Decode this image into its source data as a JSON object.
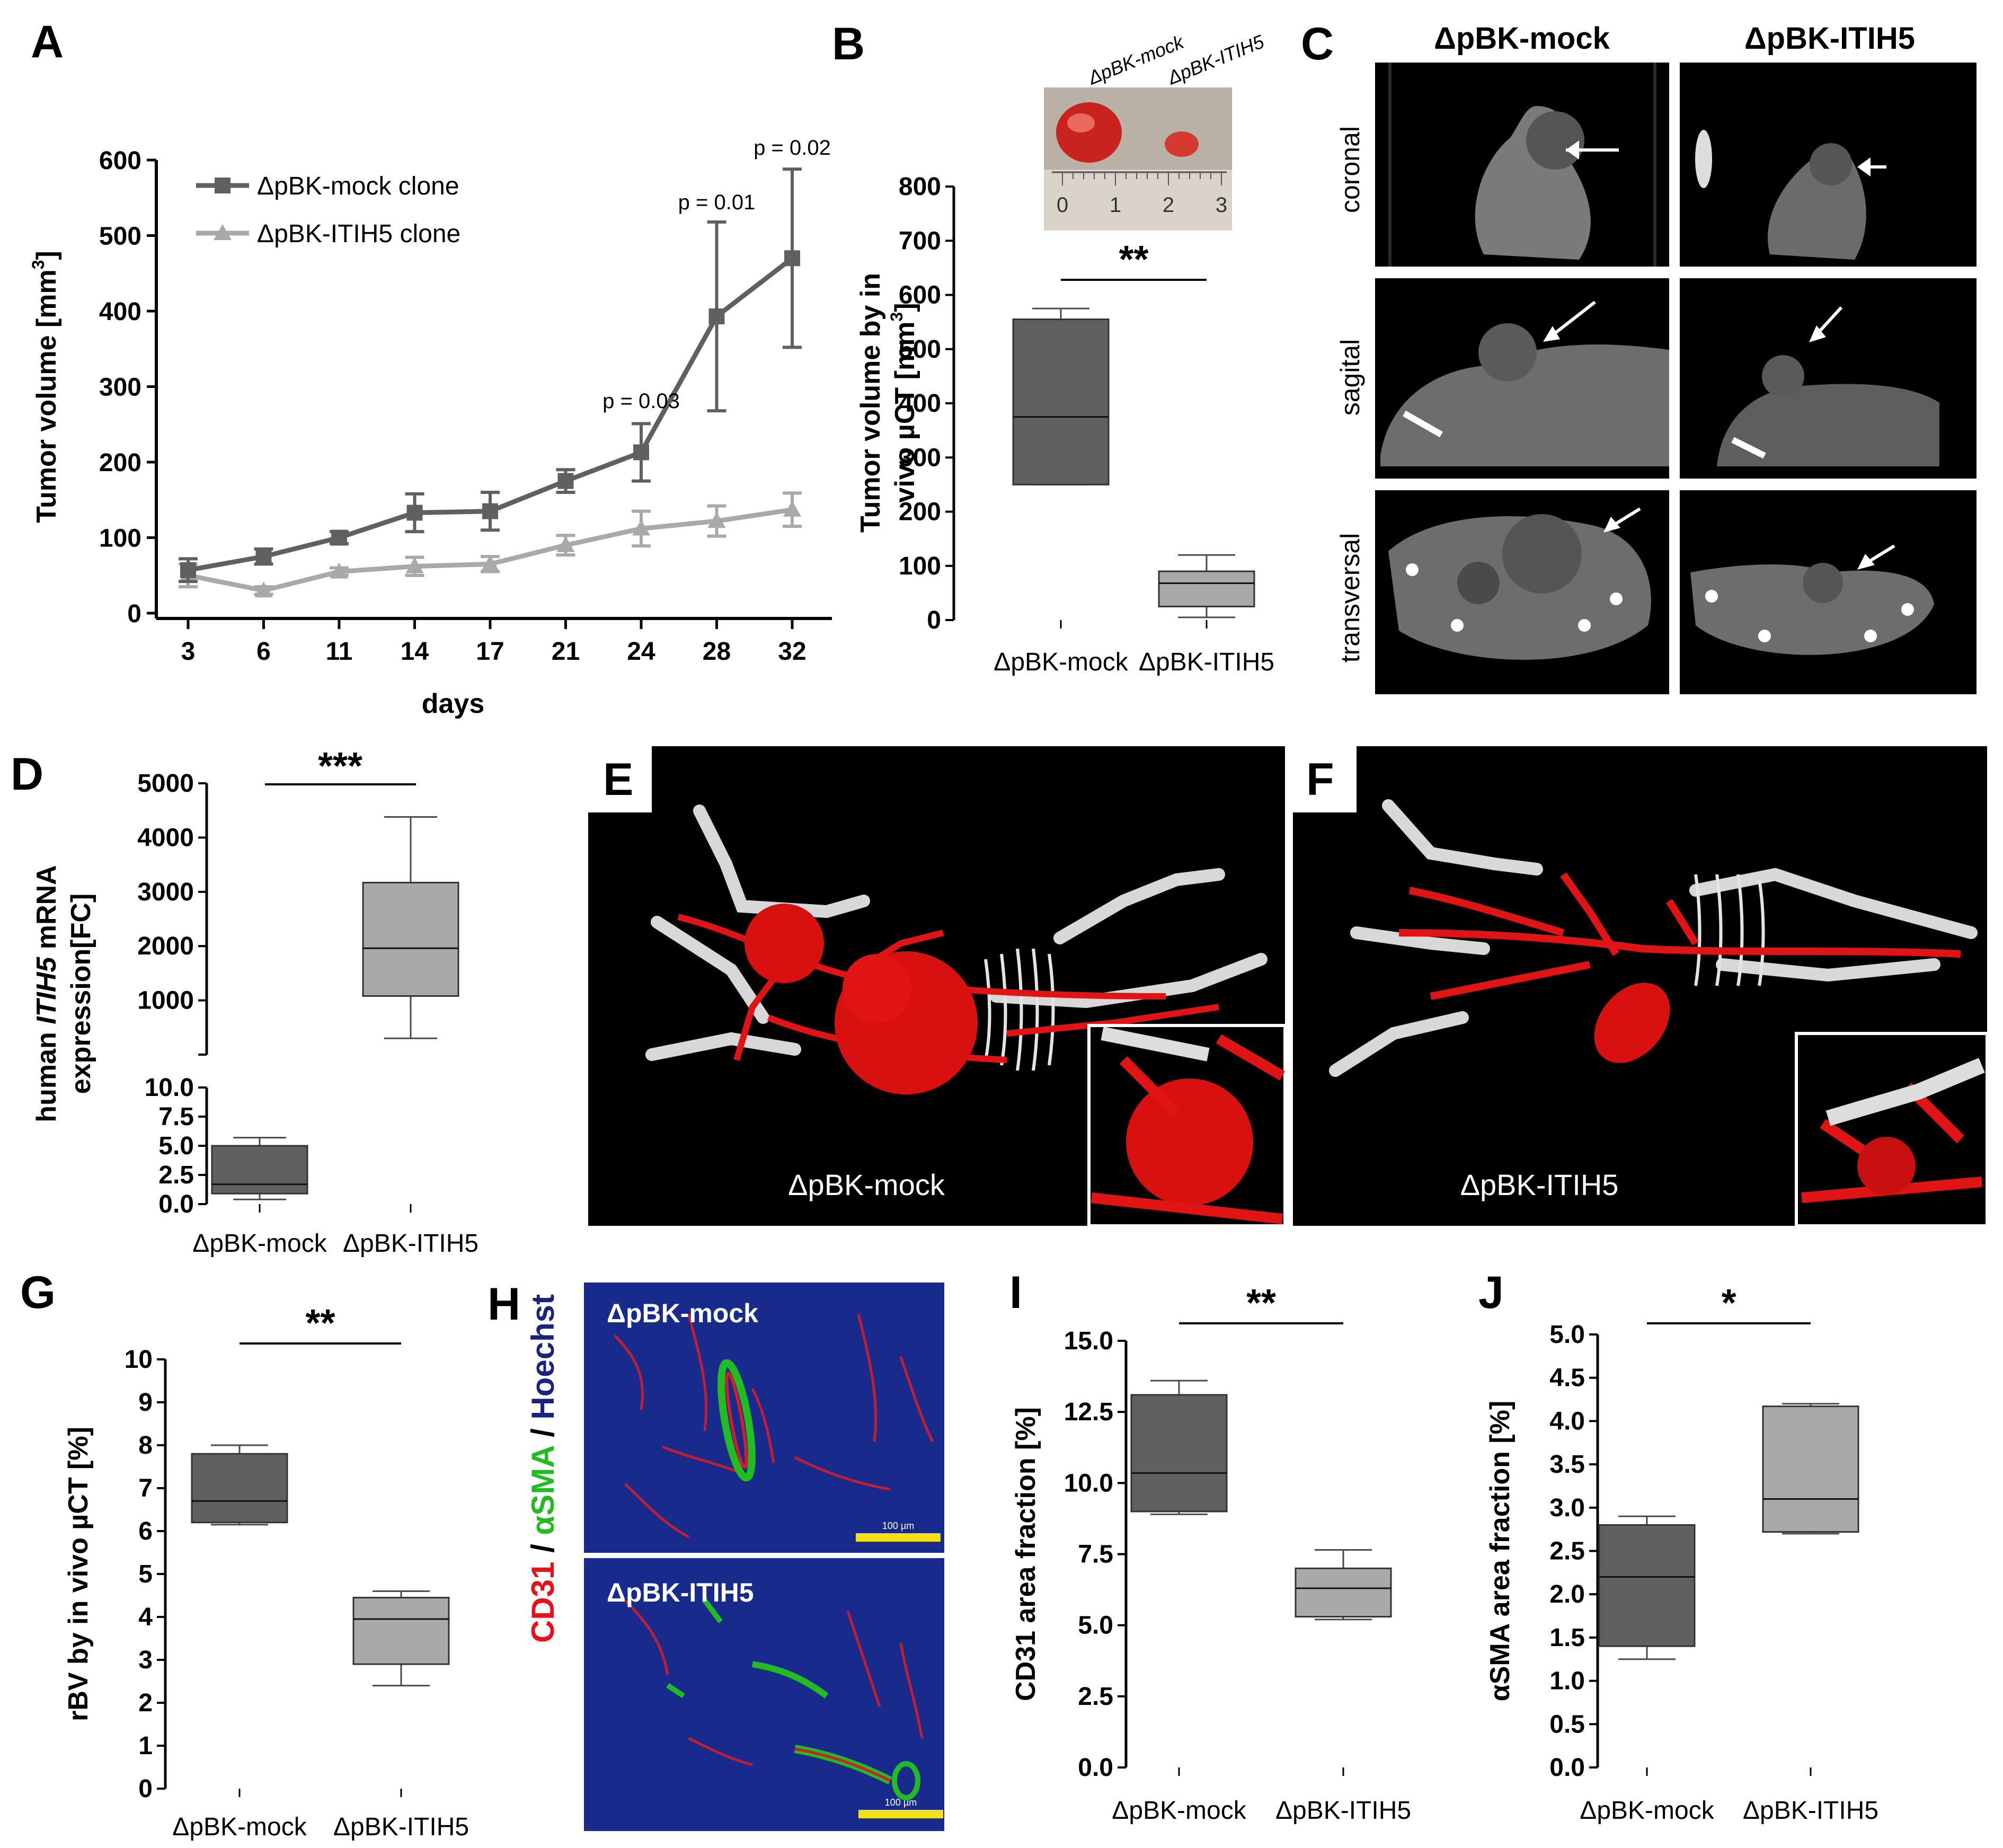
{
  "figure": {
    "colors": {
      "mock": "#606060",
      "itih5": "#a9a9a9",
      "cd31": "#e8101a",
      "asma": "#22bb22",
      "hoechst": "#1a237e",
      "scale": "#f3e016"
    }
  },
  "panel_labels": {
    "A": "A",
    "B": "B",
    "C": "C",
    "D": "D",
    "E": "E",
    "F": "F",
    "G": "G",
    "H": "H",
    "I": "I",
    "J": "J"
  },
  "chart_data": [
    {
      "id": "A",
      "type": "line",
      "xlabel": "days",
      "ylabel_parts": [
        "Tumor volume [mm",
        "3",
        "]"
      ],
      "ylim": [
        0,
        600
      ],
      "yticks": [
        "0",
        "100",
        "200",
        "300",
        "400",
        "500",
        "600"
      ],
      "categories": [
        "3",
        "6",
        "11",
        "14",
        "17",
        "21",
        "24",
        "28",
        "32"
      ],
      "series": [
        {
          "name": "ΔpBK-mock clone",
          "values": [
            57,
            75,
            100,
            133,
            135,
            175,
            213,
            393,
            470
          ],
          "errors": [
            15,
            10,
            8,
            25,
            25,
            15,
            38,
            125,
            118
          ]
        },
        {
          "name": "ΔpBK-ITIH5 clone",
          "values": [
            50,
            30,
            55,
            62,
            65,
            90,
            112,
            122,
            137
          ],
          "errors": [
            15,
            5,
            5,
            12,
            10,
            13,
            23,
            20,
            22
          ]
        }
      ],
      "annotations": [
        {
          "text": "p = 0.03",
          "x": "24"
        },
        {
          "text": "p = 0.01",
          "x": "28"
        },
        {
          "text": "p = 0.02",
          "x": "32"
        }
      ]
    },
    {
      "id": "B",
      "type": "box",
      "ylabel_line1": "Tumor volume by in",
      "ylabel_parts": [
        "vivo µCT [mm",
        "3",
        "]"
      ],
      "ylim": [
        0,
        800
      ],
      "yticks": [
        "0",
        "100",
        "200",
        "300",
        "400",
        "500",
        "600",
        "700",
        "800"
      ],
      "categories": [
        "ΔpBK-mock",
        "ΔpBK-ITIH5"
      ],
      "boxes": [
        {
          "min": 250,
          "q1": 250,
          "median": 375,
          "q3": 555,
          "max": 575
        },
        {
          "min": 5,
          "q1": 25,
          "median": 68,
          "q3": 90,
          "max": 120
        }
      ],
      "significance": "**",
      "photo_labels": [
        "ΔpBK-mock",
        "ΔpBK-ITIH5"
      ],
      "ruler_labels": [
        "0",
        "1",
        "2",
        "3"
      ]
    },
    {
      "id": "D",
      "type": "box",
      "ylabel_lines": [
        "human ITIH5 mRNA",
        "expression[FC]"
      ],
      "ylabel_italic": "ITIH5",
      "ylim_upper": [
        0,
        5000
      ],
      "ylim_lower": [
        0,
        10
      ],
      "yticks_upper": [
        "1000",
        "2000",
        "3000",
        "4000",
        "5000"
      ],
      "yticks_lower": [
        "0.0",
        "2.5",
        "5.0",
        "7.5",
        "10.0"
      ],
      "categories": [
        "ΔpBK-mock",
        "ΔpBK-ITIH5"
      ],
      "boxes": [
        {
          "min": 0.4,
          "q1": 0.9,
          "median": 1.7,
          "q3": 5.0,
          "max": 5.7
        },
        {
          "min": 300,
          "q1": 1080,
          "median": 1960,
          "q3": 3170,
          "max": 4380
        }
      ],
      "significance": "***"
    },
    {
      "id": "G",
      "type": "box",
      "ylabel": "rBV by in vivo µCT [%]",
      "ylim": [
        0,
        10
      ],
      "yticks": [
        "0",
        "1",
        "2",
        "3",
        "4",
        "5",
        "6",
        "7",
        "8",
        "9",
        "10"
      ],
      "categories": [
        "ΔpBK-mock",
        "ΔpBK-ITIH5"
      ],
      "boxes": [
        {
          "min": 6.15,
          "q1": 6.2,
          "median": 6.7,
          "q3": 7.8,
          "max": 8.0
        },
        {
          "min": 2.4,
          "q1": 2.9,
          "median": 3.95,
          "q3": 4.45,
          "max": 4.6
        }
      ],
      "significance": "**"
    },
    {
      "id": "I",
      "type": "box",
      "ylabel": "CD31 area fraction [%]",
      "ylim": [
        0,
        15
      ],
      "yticks": [
        "0.0",
        "2.5",
        "5.0",
        "7.5",
        "10.0",
        "12.5",
        "15.0"
      ],
      "categories": [
        "ΔpBK-mock",
        "ΔpBK-ITIH5"
      ],
      "boxes": [
        {
          "min": 8.9,
          "q1": 9.0,
          "median": 10.35,
          "q3": 13.1,
          "max": 13.6
        },
        {
          "min": 5.2,
          "q1": 5.3,
          "median": 6.3,
          "q3": 7.0,
          "max": 7.65
        }
      ],
      "significance": "**"
    },
    {
      "id": "J",
      "type": "box",
      "ylabel": "αSMA area fraction [%]",
      "ylim": [
        0,
        5
      ],
      "yticks": [
        "0.0",
        "0.5",
        "1.0",
        "1.5",
        "2.0",
        "2.5",
        "3.0",
        "3.5",
        "4.0",
        "4.5",
        "5.0"
      ],
      "categories": [
        "ΔpBK-mock",
        "ΔpBK-ITIH5"
      ],
      "boxes": [
        {
          "min": 1.25,
          "q1": 1.4,
          "median": 2.2,
          "q3": 2.8,
          "max": 2.9
        },
        {
          "min": 2.7,
          "q1": 2.72,
          "median": 3.1,
          "q3": 4.17,
          "max": 4.2
        }
      ],
      "significance": "*"
    }
  ],
  "panel_C": {
    "columns": [
      "ΔpBK-mock",
      "ΔpBK-ITIH5"
    ],
    "rows": [
      "coronal",
      "sagital",
      "transversal"
    ]
  },
  "panel_E": {
    "label": "ΔpBK-mock"
  },
  "panel_F": {
    "label": "ΔpBK-ITIH5"
  },
  "panel_H": {
    "images": [
      "ΔpBK-mock",
      "ΔpBK-ITIH5"
    ],
    "channels": [
      {
        "text": "CD31",
        "color": "#e8101a"
      },
      {
        "text": " / ",
        "color": "#000000"
      },
      {
        "text": "αSMA",
        "color": "#22bb22"
      },
      {
        "text": " / ",
        "color": "#000000"
      },
      {
        "text": "Hoechst",
        "color": "#1a237e"
      }
    ],
    "scale_label": "100 µm"
  }
}
